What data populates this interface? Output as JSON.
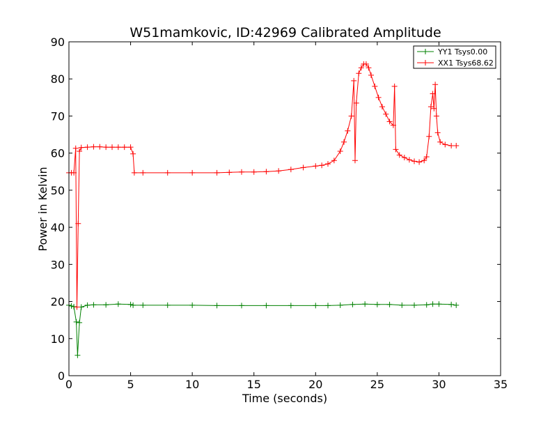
{
  "chart_data": {
    "type": "line",
    "title": "W51mamkovic, ID:42969 Calibrated Amplitude",
    "xlabel": "Time (seconds)",
    "ylabel": "Power in Kelvin",
    "xlim": [
      0,
      35
    ],
    "ylim": [
      0,
      90
    ],
    "x_ticks": [
      0,
      5,
      10,
      15,
      20,
      25,
      30,
      35
    ],
    "y_ticks": [
      0,
      10,
      20,
      30,
      40,
      50,
      60,
      70,
      80,
      90
    ],
    "x_tick_labels": [
      "0",
      "5",
      "10",
      "15",
      "20",
      "25",
      "30",
      "35"
    ],
    "y_tick_labels": [
      "0",
      "10",
      "20",
      "30",
      "40",
      "50",
      "60",
      "70",
      "80",
      "90"
    ],
    "grid": false,
    "legend_position": "top-right",
    "marker": "plus",
    "series": [
      {
        "name": "YY1 Tsys0.00",
        "color": "#008000",
        "points": [
          [
            0.0,
            19.0
          ],
          [
            0.2,
            18.8
          ],
          [
            0.4,
            18.6
          ],
          [
            0.6,
            14.5
          ],
          [
            0.7,
            5.5
          ],
          [
            0.85,
            14.3
          ],
          [
            1.0,
            18.5
          ],
          [
            1.5,
            19.0
          ],
          [
            2.0,
            19.1
          ],
          [
            3.0,
            19.1
          ],
          [
            4.0,
            19.3
          ],
          [
            5.0,
            19.2
          ],
          [
            5.2,
            19.0
          ],
          [
            6.0,
            19.0
          ],
          [
            8.0,
            19.0
          ],
          [
            10.0,
            19.0
          ],
          [
            12.0,
            18.9
          ],
          [
            14.0,
            18.9
          ],
          [
            16.0,
            18.9
          ],
          [
            18.0,
            18.9
          ],
          [
            20.0,
            18.9
          ],
          [
            21.0,
            18.9
          ],
          [
            22.0,
            19.0
          ],
          [
            23.0,
            19.2
          ],
          [
            24.0,
            19.3
          ],
          [
            25.0,
            19.2
          ],
          [
            26.0,
            19.2
          ],
          [
            27.0,
            19.0
          ],
          [
            28.0,
            19.0
          ],
          [
            29.0,
            19.1
          ],
          [
            29.5,
            19.3
          ],
          [
            30.0,
            19.3
          ],
          [
            31.0,
            19.2
          ],
          [
            31.4,
            19.0
          ]
        ]
      },
      {
        "name": "XX1 Tsys68.62",
        "color": "#ff0000",
        "points": [
          [
            0.0,
            54.7
          ],
          [
            0.2,
            54.7
          ],
          [
            0.4,
            54.7
          ],
          [
            0.55,
            61.3
          ],
          [
            0.65,
            18.5
          ],
          [
            0.75,
            41.0
          ],
          [
            0.85,
            60.5
          ],
          [
            1.0,
            61.5
          ],
          [
            1.5,
            61.6
          ],
          [
            2.0,
            61.7
          ],
          [
            2.5,
            61.7
          ],
          [
            3.0,
            61.6
          ],
          [
            3.5,
            61.6
          ],
          [
            4.0,
            61.6
          ],
          [
            4.5,
            61.6
          ],
          [
            5.0,
            61.6
          ],
          [
            5.2,
            59.8
          ],
          [
            5.3,
            54.7
          ],
          [
            6.0,
            54.7
          ],
          [
            8.0,
            54.7
          ],
          [
            10.0,
            54.7
          ],
          [
            12.0,
            54.7
          ],
          [
            13.0,
            54.8
          ],
          [
            14.0,
            54.9
          ],
          [
            15.0,
            54.9
          ],
          [
            16.0,
            55.0
          ],
          [
            17.0,
            55.2
          ],
          [
            18.0,
            55.6
          ],
          [
            19.0,
            56.1
          ],
          [
            20.0,
            56.5
          ],
          [
            20.5,
            56.7
          ],
          [
            21.0,
            57.1
          ],
          [
            21.5,
            58.0
          ],
          [
            22.0,
            60.5
          ],
          [
            22.3,
            63.0
          ],
          [
            22.6,
            66.0
          ],
          [
            22.9,
            70.0
          ],
          [
            23.1,
            79.5
          ],
          [
            23.2,
            58.0
          ],
          [
            23.3,
            73.5
          ],
          [
            23.5,
            81.5
          ],
          [
            23.7,
            83.0
          ],
          [
            23.9,
            84.0
          ],
          [
            24.1,
            84.0
          ],
          [
            24.3,
            83.0
          ],
          [
            24.5,
            81.0
          ],
          [
            24.8,
            78.0
          ],
          [
            25.1,
            75.0
          ],
          [
            25.4,
            72.5
          ],
          [
            25.7,
            70.5
          ],
          [
            26.0,
            68.5
          ],
          [
            26.3,
            67.5
          ],
          [
            26.4,
            78.0
          ],
          [
            26.5,
            61.0
          ],
          [
            26.8,
            59.5
          ],
          [
            27.2,
            58.8
          ],
          [
            27.6,
            58.2
          ],
          [
            28.0,
            57.8
          ],
          [
            28.4,
            57.6
          ],
          [
            28.8,
            58.0
          ],
          [
            29.0,
            59.0
          ],
          [
            29.2,
            64.5
          ],
          [
            29.35,
            72.5
          ],
          [
            29.5,
            76.0
          ],
          [
            29.6,
            72.0
          ],
          [
            29.7,
            78.5
          ],
          [
            29.8,
            70.0
          ],
          [
            29.9,
            65.5
          ],
          [
            30.1,
            63.0
          ],
          [
            30.5,
            62.3
          ],
          [
            31.0,
            62.0
          ],
          [
            31.4,
            62.0
          ]
        ]
      }
    ]
  }
}
